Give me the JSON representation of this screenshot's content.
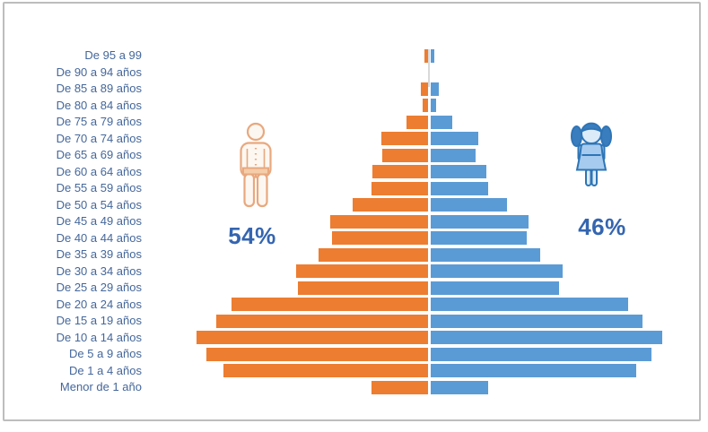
{
  "colors": {
    "male_bar": "#ED7D31",
    "female_bar": "#5B9BD5",
    "label_text": "#44679B",
    "pct_text": "#3465B0",
    "male_icon_stroke": "#E8A87E",
    "male_icon_fill": "#FDF7F1",
    "male_icon_briefs": "#F5CDA8",
    "female_icon_outline": "#2E75B6",
    "female_icon_fill": "#A6CBEF",
    "female_icon_skin": "#DCEBF8",
    "female_icon_hair": "#3A7DBF",
    "frame_border": "#BDBDBD",
    "axis_line": "#D9D9D9"
  },
  "chart_data": {
    "type": "bar",
    "subtype": "population-pyramid",
    "title": "",
    "xlabel": "",
    "ylabel": "",
    "grid": false,
    "legend_position": "icons flanking pyramid (orange man = left side, blue girl = right side)",
    "value_scale": "relative units, longest bar (De 10 a 14 años) = 100 per side",
    "xlim_per_side": [
      0,
      100
    ],
    "categories": [
      "De 95 a 99",
      "De 90 a 94 años",
      "De 85 a 89 años",
      "De 80 a 84 años",
      "De 75 a 79 años",
      "De 70 a 74 años",
      "De 65 a 69 años",
      "De 60 a 64 años",
      "De 55 a 59 años",
      "De 50 a 54 años",
      "De 45 a 49 años",
      "De 40 a 44 años",
      "De 35 a 39 años",
      "De 30 a 34 años",
      "De 25 a 29 años",
      "De 20 a 24 años",
      "De 15 a 19 años",
      "De 10 a 14 años",
      "De 5 a 9 años",
      "De 1 a 4 años",
      "Menor de 1 año"
    ],
    "series": [
      {
        "key": "male",
        "side": "left",
        "color": "#ED7D31",
        "pct_label": "54%",
        "values": [
          1.6,
          0,
          3.2,
          2.2,
          9.3,
          20.3,
          19.9,
          24.1,
          24.4,
          32.6,
          42.2,
          41.6,
          47.3,
          57.0,
          56.2,
          84.9,
          91.5,
          100,
          95.7,
          88.4,
          24.4
        ]
      },
      {
        "key": "female",
        "side": "right",
        "color": "#5B9BD5",
        "pct_label": "46%",
        "values": [
          1.7,
          0,
          3.6,
          2.3,
          9.4,
          20.4,
          19.4,
          24.0,
          24.6,
          32.9,
          42.3,
          41.6,
          47.4,
          56.8,
          55.5,
          85.4,
          91.5,
          100,
          95.5,
          88.6,
          24.6
        ]
      }
    ]
  }
}
